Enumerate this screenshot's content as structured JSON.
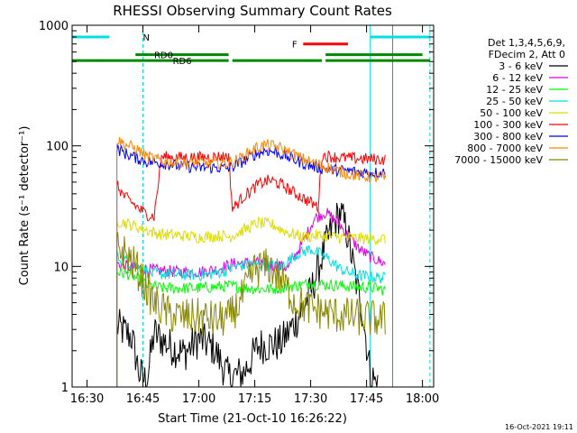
{
  "chart_data": {
    "type": "line",
    "title": "RHESSI Observing Summary Count Rates",
    "xlabel": "Start Time (21-Oct-10 16:26:22)",
    "ylabel": "Count Rate (s⁻¹ detector⁻¹)",
    "y_scale": "log",
    "xlim": [
      "16:26",
      "18:03"
    ],
    "ylim": [
      1,
      1000
    ],
    "x_ticks": [
      "16:30",
      "16:45",
      "17:00",
      "17:15",
      "17:30",
      "17:45",
      "18:00"
    ],
    "y_ticks": [
      "1",
      "10",
      "100",
      "1000"
    ],
    "footer_timestamp": "16-Oct-2021 19:11",
    "legend": {
      "placement": "right",
      "header": [
        "Det 1,3,4,5,6,9,",
        "FDecim 2, Att 0"
      ]
    },
    "series": [
      {
        "name": "3 - 6 keV",
        "color": "#000000",
        "points": [
          [
            "16:38",
            3.2
          ],
          [
            "16:42",
            2.6
          ],
          [
            "16:44",
            1.3
          ],
          [
            "16:46",
            1.1
          ],
          [
            "16:48",
            2.8
          ],
          [
            "16:52",
            2.2
          ],
          [
            "16:56",
            1.9
          ],
          [
            "17:00",
            2.5
          ],
          [
            "17:04",
            2.1
          ],
          [
            "17:08",
            1.2
          ],
          [
            "17:12",
            1.3
          ],
          [
            "17:16",
            2.2
          ],
          [
            "17:22",
            2.3
          ],
          [
            "17:26",
            3.5
          ],
          [
            "17:30",
            6
          ],
          [
            "17:33",
            12
          ],
          [
            "17:36",
            22
          ],
          [
            "17:38",
            28
          ],
          [
            "17:40",
            18
          ],
          [
            "17:42",
            8
          ],
          [
            "17:44",
            4
          ],
          [
            "17:46",
            1.3
          ],
          [
            "17:48",
            1
          ]
        ]
      },
      {
        "name": "6 - 12 keV",
        "color": "#e000e0",
        "points": [
          [
            "16:38",
            10.5
          ],
          [
            "16:42",
            9.8
          ],
          [
            "16:46",
            9.5
          ],
          [
            "16:50",
            9.2
          ],
          [
            "16:55",
            9
          ],
          [
            "17:00",
            9
          ],
          [
            "17:05",
            9.5
          ],
          [
            "17:09",
            10.5
          ],
          [
            "17:15",
            10.8
          ],
          [
            "17:20",
            10.2
          ],
          [
            "17:24",
            9.8
          ],
          [
            "17:28",
            16
          ],
          [
            "17:31",
            25
          ],
          [
            "17:34",
            28
          ],
          [
            "17:37",
            24
          ],
          [
            "17:40",
            18
          ],
          [
            "17:43",
            14
          ],
          [
            "17:46",
            12
          ],
          [
            "17:50",
            10.5
          ]
        ]
      },
      {
        "name": "12 - 25 keV",
        "color": "#00ff00",
        "points": [
          [
            "16:38",
            9
          ],
          [
            "16:42",
            8.5
          ],
          [
            "16:46",
            7
          ],
          [
            "16:50",
            6.6
          ],
          [
            "17:00",
            6.6
          ],
          [
            "17:08",
            6.9
          ],
          [
            "17:12",
            6.7
          ],
          [
            "17:16",
            6.5
          ],
          [
            "17:20",
            6.5
          ],
          [
            "17:24",
            6.8
          ],
          [
            "17:30",
            7.2
          ],
          [
            "17:36",
            7.0
          ],
          [
            "17:42",
            6.8
          ],
          [
            "17:48",
            6.6
          ],
          [
            "17:50",
            6.3
          ]
        ]
      },
      {
        "name": "25 - 50 keV",
        "color": "#00e0e0",
        "points": [
          [
            "16:38",
            12
          ],
          [
            "16:41",
            11
          ],
          [
            "16:44",
            9.8
          ],
          [
            "16:47",
            8.8
          ],
          [
            "16:52",
            8.6
          ],
          [
            "16:57",
            8.5
          ],
          [
            "17:02",
            8.5
          ],
          [
            "17:06",
            9
          ],
          [
            "17:10",
            10
          ],
          [
            "17:14",
            10.5
          ],
          [
            "17:18",
            10.2
          ],
          [
            "17:22",
            10
          ],
          [
            "17:26",
            12.5
          ],
          [
            "17:30",
            14
          ],
          [
            "17:34",
            12
          ],
          [
            "17:38",
            9.5
          ],
          [
            "17:42",
            8.5
          ],
          [
            "17:46",
            8.2
          ],
          [
            "17:50",
            8
          ]
        ]
      },
      {
        "name": "50 - 100 keV",
        "color": "#dddd00",
        "points": [
          [
            "16:38",
            24
          ],
          [
            "16:42",
            22
          ],
          [
            "16:46",
            20
          ],
          [
            "16:48",
            19
          ],
          [
            "16:50",
            18.5
          ],
          [
            "16:55",
            18
          ],
          [
            "17:00",
            17.5
          ],
          [
            "17:06",
            18
          ],
          [
            "17:08",
            17.5
          ],
          [
            "17:12",
            20
          ],
          [
            "17:16",
            23
          ],
          [
            "17:20",
            22
          ],
          [
            "17:24",
            19
          ],
          [
            "17:28",
            17.5
          ],
          [
            "17:32",
            18
          ],
          [
            "17:38",
            17.5
          ],
          [
            "17:44",
            17
          ],
          [
            "17:50",
            17
          ]
        ]
      },
      {
        "name": "100 - 300 keV",
        "color": "#ff0000",
        "points": [
          [
            "16:38",
            47
          ],
          [
            "16:40",
            38
          ],
          [
            "16:42",
            34
          ],
          [
            "16:44",
            30
          ],
          [
            "16:46",
            27
          ],
          [
            "16:48",
            26
          ],
          [
            "16:50",
            81
          ],
          [
            "16:55",
            80
          ],
          [
            "17:00",
            80
          ],
          [
            "17:04",
            81
          ],
          [
            "17:08",
            82
          ],
          [
            "17:09",
            30
          ],
          [
            "17:12",
            38
          ],
          [
            "17:16",
            48
          ],
          [
            "17:19",
            52
          ],
          [
            "17:22",
            48
          ],
          [
            "17:26",
            40
          ],
          [
            "17:30",
            34
          ],
          [
            "17:32",
            31
          ],
          [
            "17:33",
            83
          ],
          [
            "17:38",
            80
          ],
          [
            "17:44",
            78
          ],
          [
            "17:50",
            77
          ]
        ]
      },
      {
        "name": "300 - 800 keV",
        "color": "#0000ff",
        "points": [
          [
            "16:38",
            95
          ],
          [
            "16:40",
            87
          ],
          [
            "16:43",
            80
          ],
          [
            "16:46",
            74
          ],
          [
            "16:50",
            72
          ],
          [
            "16:55",
            68
          ],
          [
            "17:00",
            66
          ],
          [
            "17:05",
            66
          ],
          [
            "17:08",
            65
          ],
          [
            "17:11",
            72
          ],
          [
            "17:15",
            85
          ],
          [
            "17:18",
            92
          ],
          [
            "17:21",
            88
          ],
          [
            "17:25",
            78
          ],
          [
            "17:29",
            70
          ],
          [
            "17:33",
            65
          ],
          [
            "17:37",
            63
          ],
          [
            "17:42",
            61
          ],
          [
            "17:46",
            60
          ],
          [
            "17:50",
            60
          ]
        ]
      },
      {
        "name": "800 - 7000 keV",
        "color": "#ff8800",
        "points": [
          [
            "16:38",
            112
          ],
          [
            "16:40",
            104
          ],
          [
            "16:43",
            95
          ],
          [
            "16:46",
            82
          ],
          [
            "16:50",
            75
          ],
          [
            "16:55",
            72
          ],
          [
            "17:00",
            72
          ],
          [
            "17:05",
            72
          ],
          [
            "17:08",
            72
          ],
          [
            "17:11",
            78
          ],
          [
            "17:15",
            95
          ],
          [
            "17:18",
            102
          ],
          [
            "17:21",
            98
          ],
          [
            "17:25",
            86
          ],
          [
            "17:29",
            75
          ],
          [
            "17:33",
            69
          ],
          [
            "17:37",
            62
          ],
          [
            "17:42",
            57
          ],
          [
            "17:46",
            55
          ],
          [
            "17:50",
            54
          ]
        ]
      },
      {
        "name": "7000 - 15000 keV",
        "color": "#888800",
        "points": [
          [
            "16:38",
            15
          ],
          [
            "16:40",
            13
          ],
          [
            "16:43",
            10
          ],
          [
            "16:46",
            6.5
          ],
          [
            "16:48",
            5
          ],
          [
            "16:52",
            4
          ],
          [
            "16:56",
            3.8
          ],
          [
            "17:00",
            3.8
          ],
          [
            "17:05",
            3.6
          ],
          [
            "17:08",
            3.7
          ],
          [
            "17:11",
            5
          ],
          [
            "17:15",
            9.5
          ],
          [
            "17:19",
            10
          ],
          [
            "17:22",
            8
          ],
          [
            "17:26",
            5
          ],
          [
            "17:30",
            4.5
          ],
          [
            "17:36",
            4
          ],
          [
            "17:42",
            3.8
          ],
          [
            "17:50",
            3.6
          ]
        ]
      }
    ],
    "bars": [
      {
        "label": "N",
        "color": "#00e0e0",
        "level": 800,
        "spans": [
          [
            "16:26",
            "16:36"
          ],
          [
            "17:46",
            "18:02"
          ]
        ],
        "label_at": "16:45"
      },
      {
        "label": "RD0",
        "color": "#008800",
        "level": 570,
        "spans": [
          [
            "16:43",
            "17:08"
          ],
          [
            "17:34",
            "18:00"
          ]
        ],
        "label_at": "16:48"
      },
      {
        "label": "RD6",
        "color": "#008800",
        "level": 510,
        "spans": [
          [
            "16:26",
            "17:08"
          ],
          [
            "17:09",
            "17:33"
          ],
          [
            "17:34",
            "18:02"
          ]
        ],
        "label_at": "16:53"
      },
      {
        "label": "F",
        "color": "#ff0000",
        "level": 700,
        "spans": [
          [
            "17:28",
            "17:40"
          ]
        ],
        "label_at": "17:25"
      }
    ],
    "vertical_markers": [
      {
        "time": "16:26",
        "style": "solid",
        "color": "#00e0e0"
      },
      {
        "time": "16:45",
        "style": "dashed",
        "color": "#00e0e0"
      },
      {
        "time": "17:46",
        "style": "solid",
        "color": "#00e0e0"
      },
      {
        "time": "18:02",
        "style": "dashed",
        "color": "#00e0e0"
      },
      {
        "time": "17:52",
        "style": "solid",
        "color": "#00cc00"
      }
    ]
  }
}
